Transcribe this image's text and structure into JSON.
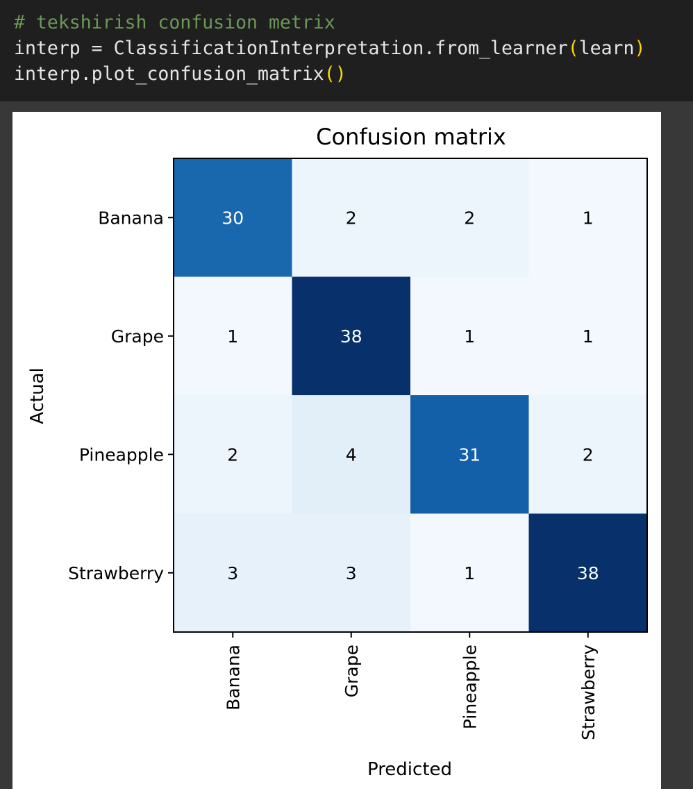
{
  "code_cell": {
    "lines": [
      [
        {
          "text": "# tekshirish confusion metrix",
          "kind": "comment"
        }
      ],
      [
        {
          "text": "interp = ClassificationInterpretation.from_learner",
          "kind": "plain"
        },
        {
          "text": "(",
          "kind": "paren"
        },
        {
          "text": "learn",
          "kind": "plain"
        },
        {
          "text": ")",
          "kind": "paren"
        }
      ],
      [
        {
          "text": "interp.plot_confusion_matrix",
          "kind": "plain"
        },
        {
          "text": "()",
          "kind": "paren"
        }
      ]
    ]
  },
  "colors": {
    "code_background": "#1f1f1f",
    "comment": "#6a9955",
    "paren": "#ffd700",
    "colormap": "Blues"
  },
  "chart_data": {
    "type": "heatmap",
    "title": "Confusion matrix",
    "xlabel": "Predicted",
    "ylabel": "Actual",
    "x_categories": [
      "Banana",
      "Grape",
      "Pineapple",
      "Strawberry"
    ],
    "y_categories": [
      "Banana",
      "Grape",
      "Pineapple",
      "Strawberry"
    ],
    "values": [
      [
        30,
        2,
        2,
        1
      ],
      [
        1,
        38,
        1,
        1
      ],
      [
        2,
        4,
        31,
        2
      ],
      [
        3,
        3,
        1,
        38
      ]
    ],
    "value_range": [
      0,
      38
    ],
    "x_tick_rotation": 90,
    "grid": false,
    "colorbar": false
  }
}
